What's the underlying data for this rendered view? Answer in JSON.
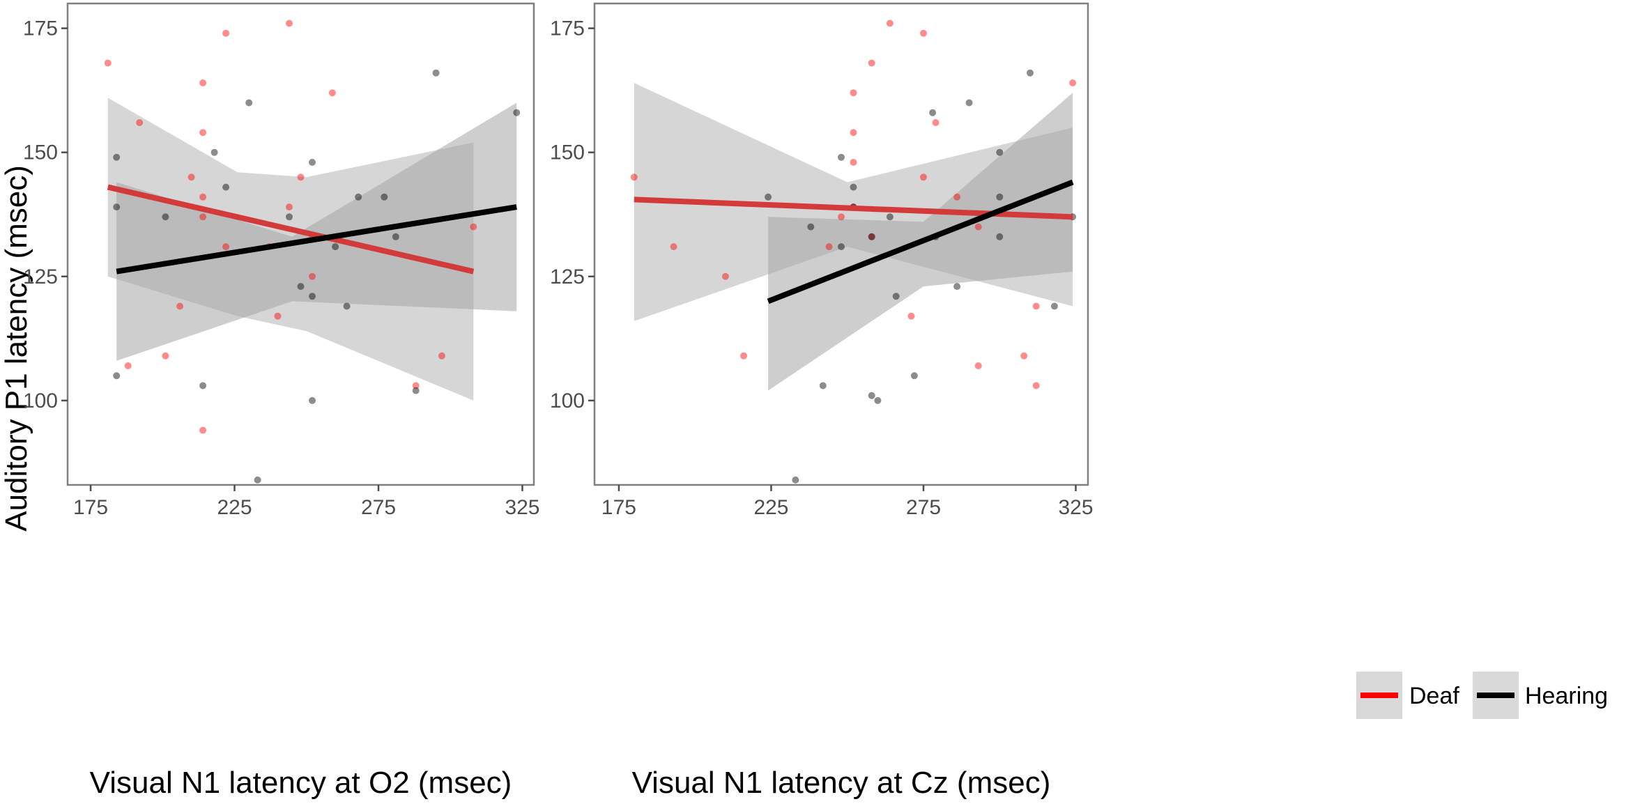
{
  "chart_data": {
    "type": "scatter",
    "ylabel": "Auditory P1 latency (msec)",
    "ylim": [
      83,
      180
    ],
    "yticks": [
      100,
      125,
      150,
      175
    ],
    "xticks": [
      175,
      225,
      275,
      325
    ],
    "colors": {
      "Deaf": "#ff0000",
      "Hearing": "#000000"
    },
    "legend": {
      "position": "bottom-right",
      "entries": [
        {
          "name": "Deaf",
          "color": "#ff0000"
        },
        {
          "name": "Hearing",
          "color": "#000000"
        }
      ]
    },
    "panels": [
      {
        "xlabel": "Visual N1 latency at O2 (msec)",
        "xlim": [
          167,
          329
        ],
        "series": [
          {
            "name": "Deaf",
            "points": [
              [
                181,
                168
              ],
              [
                188,
                107
              ],
              [
                192,
                156
              ],
              [
                201,
                109
              ],
              [
                206,
                119
              ],
              [
                210,
                145
              ],
              [
                214,
                164
              ],
              [
                214,
                154
              ],
              [
                214,
                141
              ],
              [
                214,
                137
              ],
              [
                214,
                94
              ],
              [
                222,
                174
              ],
              [
                222,
                131
              ],
              [
                237,
                131
              ],
              [
                240,
                117
              ],
              [
                244,
                139
              ],
              [
                244,
                176
              ],
              [
                248,
                145
              ],
              [
                252,
                125
              ],
              [
                252,
                133
              ],
              [
                259,
                162
              ],
              [
                288,
                103
              ],
              [
                297,
                109
              ],
              [
                308,
                135
              ]
            ],
            "fit": {
              "x": [
                181,
                308
              ],
              "y": [
                143,
                126
              ]
            },
            "ci": {
              "x": [
                181,
                226,
                250,
                308
              ],
              "lower": [
                125,
                117,
                114,
                100
              ],
              "upper": [
                161,
                146,
                145,
                152
              ]
            }
          },
          {
            "name": "Hearing",
            "points": [
              [
                184,
                149
              ],
              [
                184,
                139
              ],
              [
                184,
                105
              ],
              [
                201,
                137
              ],
              [
                214,
                103
              ],
              [
                218,
                150
              ],
              [
                222,
                143
              ],
              [
                230,
                160
              ],
              [
                233,
                84
              ],
              [
                244,
                137
              ],
              [
                248,
                123
              ],
              [
                252,
                148
              ],
              [
                252,
                121
              ],
              [
                252,
                100
              ],
              [
                260,
                131
              ],
              [
                264,
                119
              ],
              [
                268,
                141
              ],
              [
                277,
                141
              ],
              [
                281,
                133
              ],
              [
                288,
                102
              ],
              [
                295,
                166
              ],
              [
                323,
                158
              ]
            ],
            "fit": {
              "x": [
                184,
                323
              ],
              "y": [
                126,
                139
              ]
            },
            "ci": {
              "x": [
                184,
                245,
                323
              ],
              "lower": [
                108,
                120,
                118
              ],
              "upper": [
                144,
                133,
                160
              ]
            }
          }
        ]
      },
      {
        "xlabel": "Visual N1 latency at Cz (msec)",
        "xlim": [
          167,
          329
        ],
        "series": [
          {
            "name": "Deaf",
            "points": [
              [
                180,
                145
              ],
              [
                193,
                131
              ],
              [
                210,
                125
              ],
              [
                216,
                109
              ],
              [
                244,
                131
              ],
              [
                248,
                137
              ],
              [
                252,
                162
              ],
              [
                252,
                154
              ],
              [
                252,
                148
              ],
              [
                252,
                139
              ],
              [
                258,
                168
              ],
              [
                258,
                133
              ],
              [
                264,
                176
              ],
              [
                271,
                117
              ],
              [
                275,
                174
              ],
              [
                275,
                145
              ],
              [
                279,
                156
              ],
              [
                286,
                141
              ],
              [
                293,
                135
              ],
              [
                293,
                107
              ],
              [
                308,
                109
              ],
              [
                312,
                119
              ],
              [
                312,
                103
              ],
              [
                324,
                164
              ]
            ],
            "fit": {
              "x": [
                180,
                324
              ],
              "y": [
                140.5,
                137
              ]
            },
            "ci": {
              "x": [
                180,
                250,
                324
              ],
              "lower": [
                116,
                131,
                119
              ],
              "upper": [
                164,
                144,
                155
              ]
            }
          },
          {
            "name": "Hearing",
            "points": [
              [
                224,
                141
              ],
              [
                233,
                84
              ],
              [
                238,
                135
              ],
              [
                242,
                103
              ],
              [
                248,
                149
              ],
              [
                248,
                131
              ],
              [
                252,
                143
              ],
              [
                252,
                139
              ],
              [
                258,
                133
              ],
              [
                258,
                101
              ],
              [
                260,
                100
              ],
              [
                264,
                137
              ],
              [
                266,
                121
              ],
              [
                272,
                105
              ],
              [
                278,
                158
              ],
              [
                279,
                133
              ],
              [
                286,
                123
              ],
              [
                290,
                160
              ],
              [
                300,
                150
              ],
              [
                300,
                141
              ],
              [
                300,
                133
              ],
              [
                310,
                166
              ],
              [
                318,
                119
              ],
              [
                324,
                137
              ]
            ],
            "fit": {
              "x": [
                224,
                324
              ],
              "y": [
                120,
                144
              ]
            },
            "ci": {
              "x": [
                224,
                275,
                324
              ],
              "lower": [
                102,
                123,
                126
              ],
              "upper": [
                137,
                136,
                162
              ]
            }
          }
        ]
      }
    ]
  }
}
